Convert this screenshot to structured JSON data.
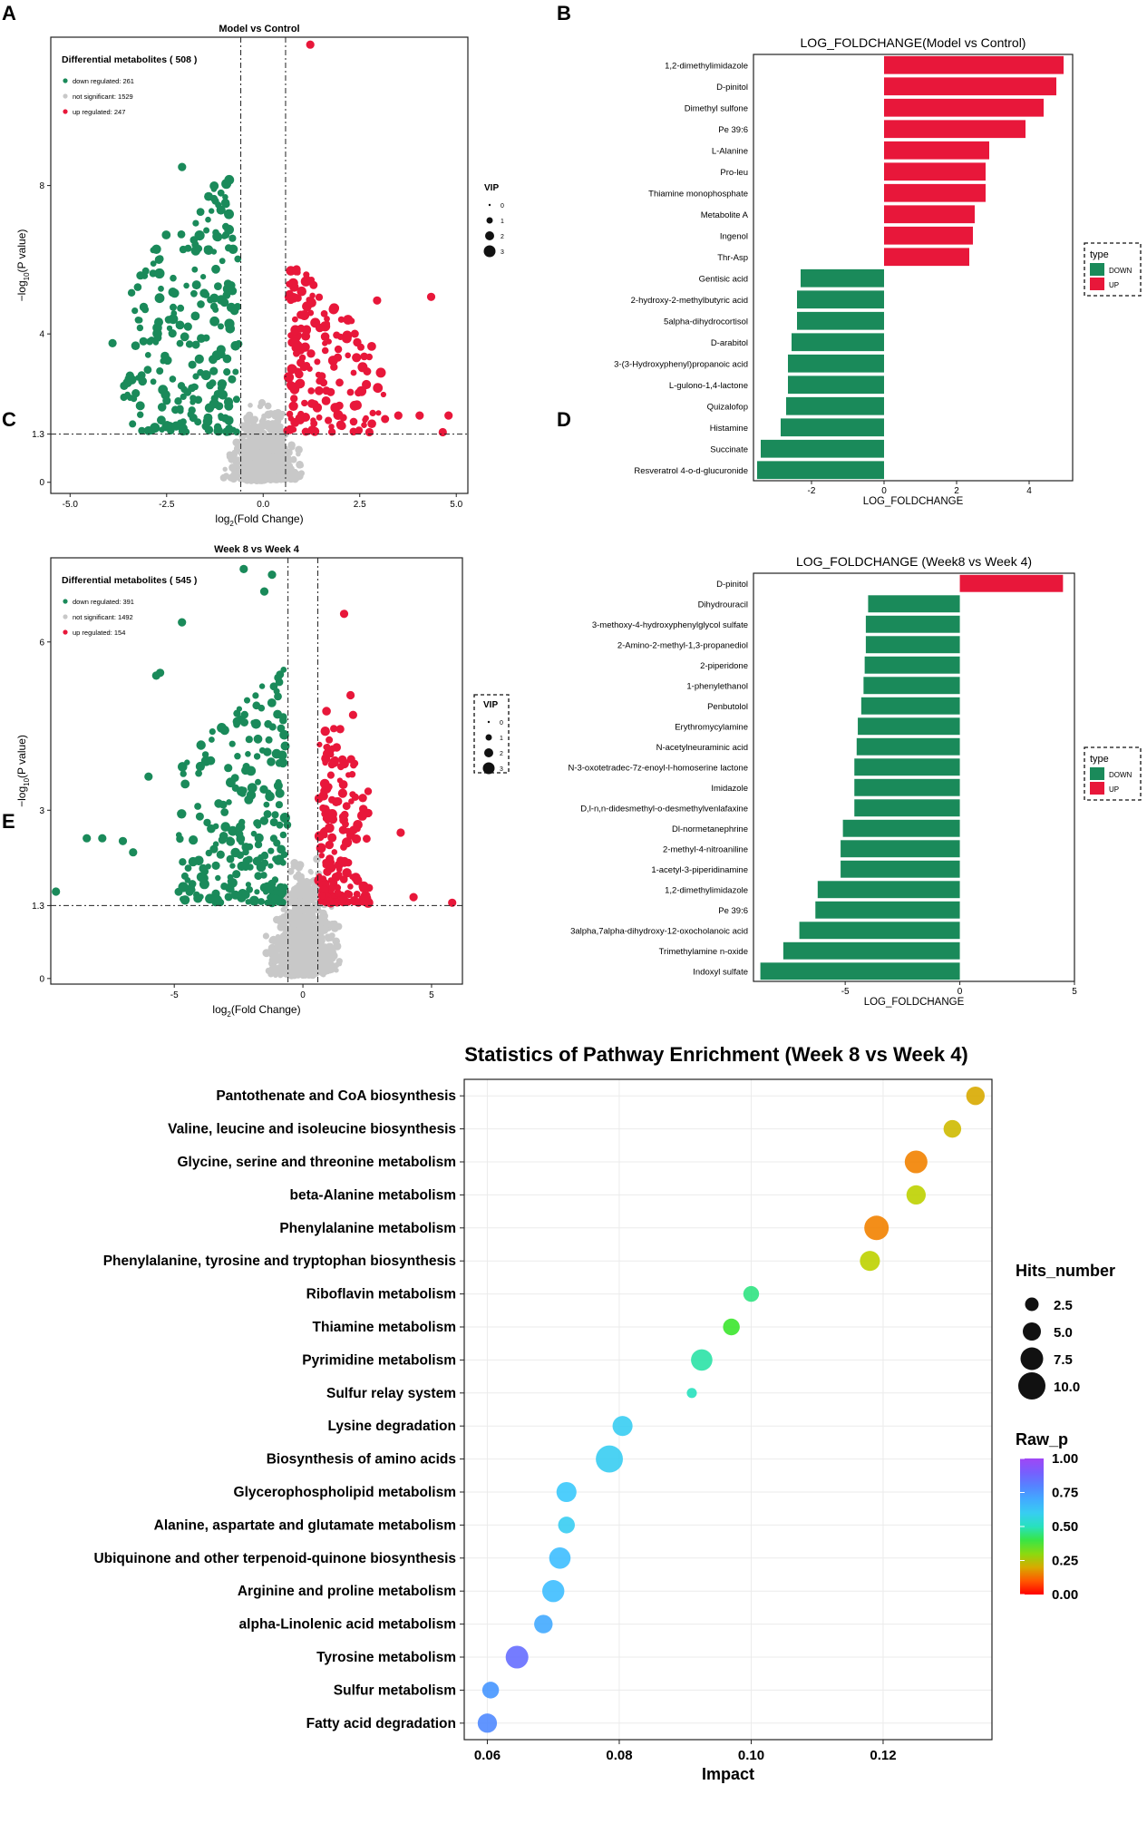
{
  "chart_data": [
    {
      "panel": "A",
      "type": "scatter",
      "title": "Model vs Control",
      "xlabel": "log2(Fold Change)",
      "ylabel": "-log10(P value)",
      "xlim": [
        -5.5,
        5.3
      ],
      "ylim": [
        -0.3,
        12
      ],
      "xticks": [
        "-5.0",
        "-2.5",
        "0.0",
        "2.5",
        "5.0"
      ],
      "xtick_values": [
        -5.0,
        -2.5,
        0.0,
        2.5,
        5.0
      ],
      "yticks": [
        "0",
        "1.3",
        "4",
        "8"
      ],
      "ytick_values": [
        0,
        1.3,
        4,
        8
      ],
      "threshold_y": 1.3,
      "threshold_x": [
        -0.58,
        0.58
      ],
      "legend_title": "Differential metabolites ( 508 )",
      "legend": [
        {
          "label": "down regulated: 261",
          "color": "#1a8a5a"
        },
        {
          "label": "not significant: 1529",
          "color": "#c8c8c8"
        },
        {
          "label": "up regulated: 247",
          "color": "#e8173a"
        }
      ],
      "counts": {
        "down": 261,
        "ns": 1529,
        "up": 247
      },
      "seed": 17,
      "spread": {
        "down_x": [
          -4.3,
          -0.6
        ],
        "up_x": [
          0.6,
          4.8
        ],
        "down_ymax": 8.6,
        "up_ymax": 6.0
      },
      "outliers_up": [
        [
          1.22,
          11.8
        ],
        [
          4.35,
          5.0
        ],
        [
          2.95,
          4.9
        ],
        [
          4.05,
          1.8
        ],
        [
          4.8,
          1.8
        ],
        [
          3.5,
          1.8
        ],
        [
          2.75,
          1.35
        ],
        [
          4.65,
          1.35
        ]
      ],
      "outliers_down": [
        [
          -2.1,
          8.5
        ],
        [
          -2.7,
          6.0
        ],
        [
          -3.1,
          3.8
        ],
        [
          -3.9,
          3.75
        ],
        [
          -3.6,
          2.6
        ],
        [
          -3.3,
          2.4
        ],
        [
          -2.5,
          2.2
        ]
      ],
      "vip_title": "VIP",
      "vip": [
        {
          "label": "0",
          "size": 0
        },
        {
          "label": "1",
          "size": 1
        },
        {
          "label": "2",
          "size": 2
        },
        {
          "label": "3",
          "size": 3
        }
      ]
    },
    {
      "panel": "B",
      "type": "bar",
      "orientation": "horizontal",
      "title": "LOG_FOLDCHANGE(Model vs Control)",
      "xlabel": "LOG_FOLDCHANGE",
      "xlim": [
        -3.6,
        5.2
      ],
      "xticks": [
        "-2",
        "0",
        "2",
        "4"
      ],
      "xtick_values": [
        -2,
        0,
        2,
        4
      ],
      "legend_title": "type",
      "legend": [
        {
          "label": "DOWN",
          "color": "#1a8a5a"
        },
        {
          "label": "UP",
          "color": "#e8173a"
        }
      ],
      "categories": [
        "1,2-dimethylimidazole",
        "D-pinitol",
        "Dimethyl sulfone",
        "Pe 39:6",
        "L-Alanine",
        "Pro-leu",
        "Thiamine monophosphate",
        "Metabolite A",
        "Ingenol",
        "Thr-Asp",
        "Gentisic acid",
        "2-hydroxy-2-methylbutyric acid",
        "5alpha-dihydrocortisol",
        "D-arabitol",
        "3-(3-Hydroxyphenyl)propanoic acid",
        "L-gulono-1,4-lactone",
        "Quizalofop",
        "Histamine",
        "Succinate",
        "Resveratrol 4-o-d-glucuronide"
      ],
      "values": [
        4.95,
        4.75,
        4.4,
        3.9,
        2.9,
        2.8,
        2.8,
        2.5,
        2.45,
        2.35,
        -2.3,
        -2.4,
        -2.4,
        -2.55,
        -2.65,
        -2.65,
        -2.7,
        -2.85,
        -3.4,
        -3.5
      ]
    },
    {
      "panel": "C",
      "type": "scatter",
      "title": "Week 8 vs Week 4",
      "xlabel": "log2(Fold Change)",
      "ylabel": "-log10(P value)",
      "xlim": [
        -9.8,
        6.2
      ],
      "ylim": [
        -0.1,
        7.5
      ],
      "xticks": [
        "-5",
        "0",
        "5"
      ],
      "xtick_values": [
        -5,
        0,
        5
      ],
      "yticks": [
        "0",
        "1.3",
        "3",
        "6"
      ],
      "ytick_values": [
        0,
        1.3,
        3,
        6
      ],
      "threshold_y": 1.3,
      "threshold_x": [
        -0.58,
        0.58
      ],
      "legend_title": "Differential metabolites ( 545 )",
      "legend": [
        {
          "label": "down regulated: 391",
          "color": "#1a8a5a"
        },
        {
          "label": "not significant: 1492",
          "color": "#c8c8c8"
        },
        {
          "label": "up regulated: 154",
          "color": "#e8173a"
        }
      ],
      "counts": {
        "down": 391,
        "ns": 1492,
        "up": 154
      },
      "seed": 29,
      "spread": {
        "down_x": [
          -6.0,
          -0.6
        ],
        "up_x": [
          0.6,
          3.8
        ],
        "down_ymax": 5.7,
        "up_ymax": 5.0
      },
      "outliers_up": [
        [
          1.6,
          6.5
        ],
        [
          1.85,
          5.05
        ],
        [
          1.95,
          4.7
        ],
        [
          4.3,
          1.45
        ],
        [
          5.8,
          1.35
        ],
        [
          3.8,
          2.6
        ]
      ],
      "outliers_down": [
        [
          -1.2,
          7.2
        ],
        [
          -2.3,
          7.3
        ],
        [
          -1.5,
          6.9
        ],
        [
          -4.7,
          6.35
        ],
        [
          -5.7,
          5.4
        ],
        [
          -5.55,
          5.45
        ],
        [
          -7.8,
          2.5
        ],
        [
          -8.4,
          2.5
        ],
        [
          -7.0,
          2.45
        ],
        [
          -6.6,
          2.25
        ],
        [
          -9.6,
          1.55
        ],
        [
          -6.0,
          3.6
        ]
      ],
      "vip_title": "VIP",
      "vip": [
        {
          "label": "0",
          "size": 0
        },
        {
          "label": "1",
          "size": 1
        },
        {
          "label": "2",
          "size": 2
        },
        {
          "label": "3",
          "size": 3
        }
      ]
    },
    {
      "panel": "D",
      "type": "bar",
      "orientation": "horizontal",
      "title": "LOG_FOLDCHANGE (Week8 vs Week 4)",
      "xlabel": "LOG_FOLDCHANGE",
      "xlim": [
        -9.0,
        5.0
      ],
      "xticks": [
        "-5",
        "0",
        "5"
      ],
      "xtick_values": [
        -5,
        0,
        5
      ],
      "legend_title": "type",
      "legend": [
        {
          "label": "DOWN",
          "color": "#1a8a5a"
        },
        {
          "label": "UP",
          "color": "#e8173a"
        }
      ],
      "categories": [
        "D-pinitol",
        "Dihydrouracil",
        "3-methoxy-4-hydroxyphenylglycol sulfate",
        "2-Amino-2-methyl-1,3-propanediol",
        "2-piperidone",
        "1-phenylethanol",
        "Penbutolol",
        "Erythromycylamine",
        "N-acetylneuraminic acid",
        "N-3-oxotetradec-7z-enoyl-l-homoserine lactone",
        "Imidazole",
        "D,l-n,n-didesmethyl-o-desmethylvenlafaxine",
        "Dl-normetanephrine",
        "2-methyl-4-nitroaniline",
        "1-acetyl-3-piperidinamine",
        "1,2-dimethylimidazole",
        "Pe 39:6",
        "3alpha,7alpha-dihydroxy-12-oxocholanoic acid",
        "Trimethylamine n-oxide",
        "Indoxyl sulfate"
      ],
      "values": [
        4.5,
        -4.0,
        -4.1,
        -4.1,
        -4.15,
        -4.2,
        -4.3,
        -4.45,
        -4.5,
        -4.6,
        -4.6,
        -4.6,
        -5.1,
        -5.2,
        -5.2,
        -6.2,
        -6.3,
        -7.0,
        -7.7,
        -8.7
      ]
    },
    {
      "panel": "E",
      "type": "scatter",
      "subtype": "bubble",
      "title": "Statistics of Pathway Enrichment (Week 8 vs Week 4)",
      "xlabel": "Impact",
      "xlim": [
        0.0565,
        0.1365
      ],
      "xticks": [
        "0.06",
        "0.08",
        "0.10",
        "0.12"
      ],
      "xtick_values": [
        0.06,
        0.08,
        0.1,
        0.12
      ],
      "size_legend_title": "Hits_number",
      "size_legend": [
        {
          "label": "2.5",
          "value": 2.5
        },
        {
          "label": "5.0",
          "value": 5.0
        },
        {
          "label": "7.5",
          "value": 7.5
        },
        {
          "label": "10.0",
          "value": 10.0
        }
      ],
      "color_legend_title": "Raw_p",
      "color_legend": [
        "1.00",
        "0.75",
        "0.50",
        "0.25",
        "0.00"
      ],
      "categories": [
        "Pantothenate and CoA biosynthesis",
        "Valine, leucine and isoleucine biosynthesis",
        "Glycine, serine and threonine metabolism",
        "beta-Alanine metabolism",
        "Phenylalanine metabolism",
        "Phenylalanine, tyrosine and tryptophan biosynthesis",
        "Riboflavin metabolism",
        "Thiamine metabolism",
        "Pyrimidine metabolism",
        "Sulfur relay system",
        "Lysine degradation",
        "Biosynthesis of amino acids",
        "Glycerophospholipid metabolism",
        "Alanine, aspartate and glutamate metabolism",
        "Ubiquinone and other terpenoid-quinone biosynthesis",
        "Arginine and proline metabolism",
        "alpha-Linolenic acid metabolism",
        "Tyrosine metabolism",
        "Sulfur metabolism",
        "Fatty acid degradation"
      ],
      "impact": [
        0.134,
        0.1305,
        0.125,
        0.125,
        0.119,
        0.118,
        0.1,
        0.097,
        0.0925,
        0.091,
        0.0805,
        0.0785,
        0.072,
        0.072,
        0.071,
        0.07,
        0.0685,
        0.0645,
        0.0605,
        0.06
      ],
      "hits": [
        4,
        3.5,
        7,
        4.5,
        8.5,
        5,
        2.5,
        3,
        6,
        0.5,
        5,
        11,
        5,
        3,
        6,
        6.5,
        4,
        7,
        3,
        4.5
      ],
      "raw_p": [
        0.2,
        0.22,
        0.15,
        0.25,
        0.15,
        0.25,
        0.45,
        0.38,
        0.48,
        0.5,
        0.6,
        0.6,
        0.62,
        0.6,
        0.65,
        0.65,
        0.7,
        0.85,
        0.75,
        0.78
      ]
    }
  ],
  "panel_labels": [
    "A",
    "B",
    "C",
    "D",
    "E"
  ],
  "colors": {
    "down": "#1a8a5a",
    "up": "#e8173a",
    "ns": "#c8c8c8"
  }
}
